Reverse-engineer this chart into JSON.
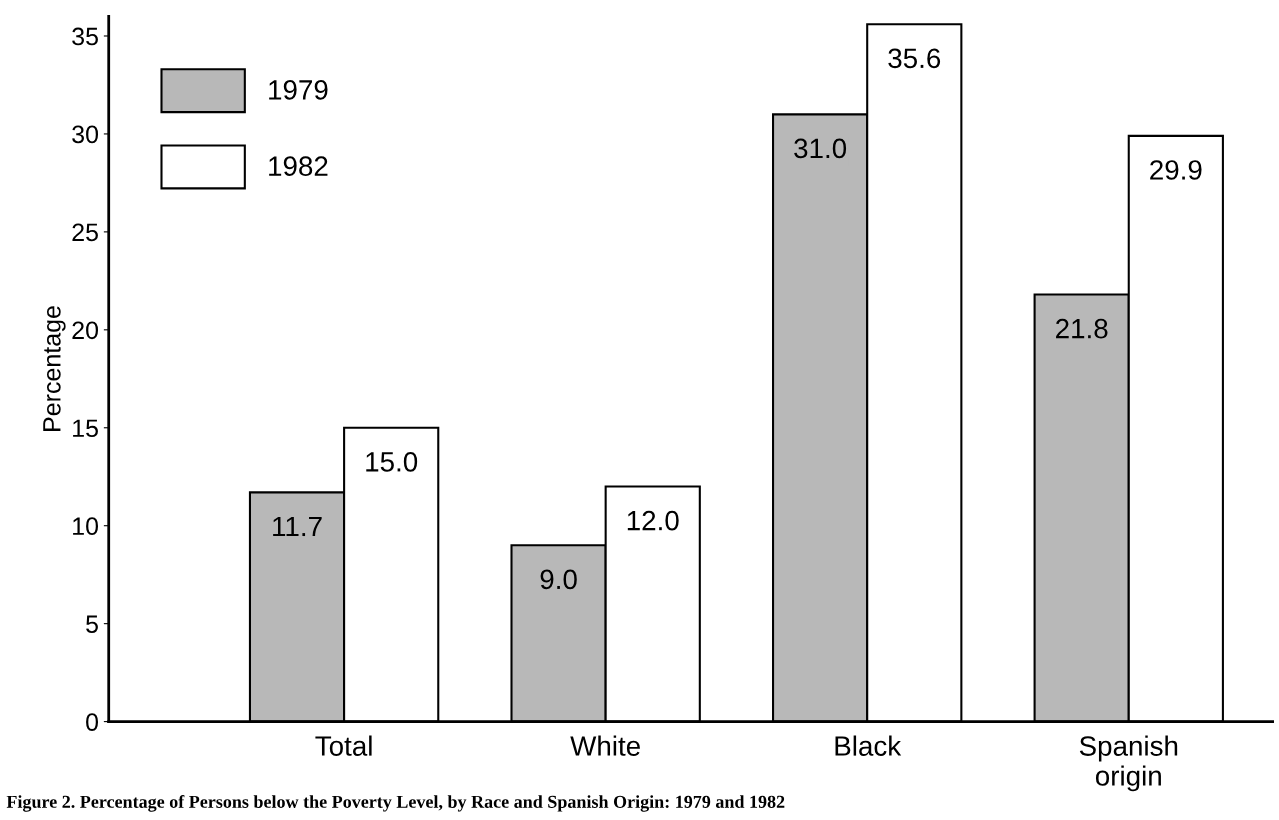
{
  "chart_data": {
    "type": "bar",
    "ylabel": "Percentage",
    "categories": [
      "Total",
      "White",
      "Black",
      "Spanish\norigin"
    ],
    "series": [
      {
        "name": "1979",
        "color": "#b8b8b8",
        "values": [
          11.7,
          9.0,
          31.0,
          21.8
        ],
        "value_labels": [
          "11.7",
          "9.0",
          "31.0",
          "21.8"
        ]
      },
      {
        "name": "1982",
        "color": "#ffffff",
        "values": [
          15.0,
          12.0,
          35.6,
          29.9
        ],
        "value_labels": [
          "15.0",
          "12.0",
          "35.6",
          "29.9"
        ]
      }
    ],
    "ylim": [
      0,
      36
    ],
    "yticks": [
      0,
      5,
      10,
      15,
      20,
      25,
      30,
      35
    ],
    "grid": false,
    "legend": "top left",
    "annotations": [
      "Figure 2. Percentage of Persons below the Poverty Level, by Race and Spanish Origin: 1979 and 1982"
    ]
  }
}
